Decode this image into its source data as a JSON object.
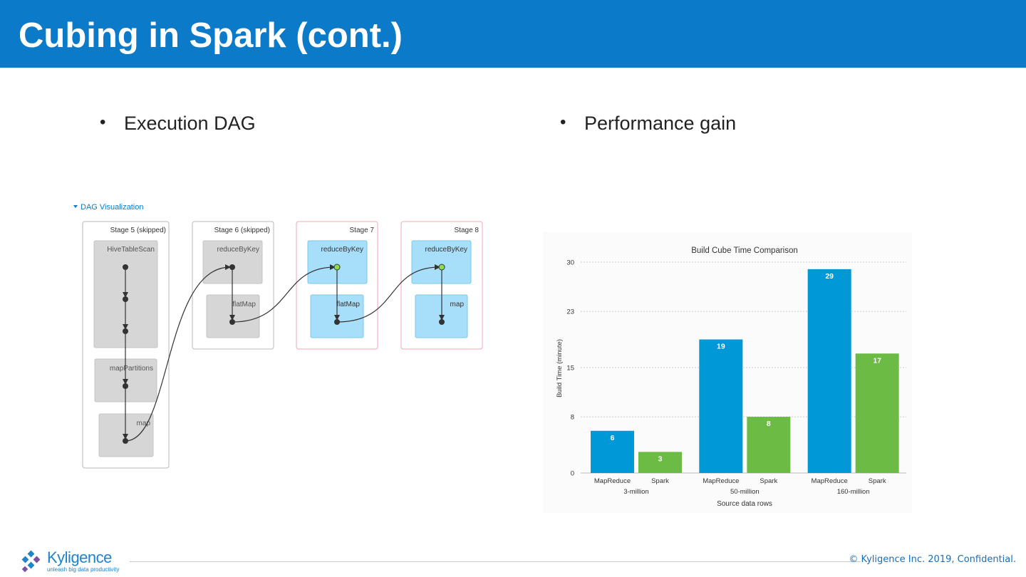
{
  "slide": {
    "title": "Cubing in Spark (cont.)",
    "bullet_left": "Execution DAG",
    "bullet_right": "Performance gain",
    "bullet_char": "•"
  },
  "dag": {
    "toggle_label": "DAG Visualization",
    "stages": [
      {
        "label": "Stage 5 (skipped)",
        "skipped": true,
        "ops": [
          "HiveTableScan",
          "mapPartitions",
          "map"
        ]
      },
      {
        "label": "Stage 6 (skipped)",
        "skipped": true,
        "ops": [
          "reduceByKey",
          "flatMap"
        ]
      },
      {
        "label": "Stage 7",
        "skipped": false,
        "ops": [
          "reduceByKey",
          "flatMap"
        ]
      },
      {
        "label": "Stage 8",
        "skipped": false,
        "ops": [
          "reduceByKey",
          "map"
        ]
      }
    ],
    "colors": {
      "skipped_fill": "#d6d6d6",
      "active_fill": "#a7dffa",
      "active_border": "#f3a5b6",
      "cached_node": "#8be04a"
    }
  },
  "chart_data": {
    "type": "bar",
    "title": "Build Cube Time Comparison",
    "xlabel": "Source data rows",
    "ylabel": "Build Time (minute)",
    "groups": [
      "3-million",
      "50-million",
      "160-million"
    ],
    "series": [
      {
        "name": "MapReduce",
        "color": "#0098d6",
        "values": [
          6,
          19,
          29
        ]
      },
      {
        "name": "Spark",
        "color": "#6cbb45",
        "values": [
          3,
          8,
          17
        ]
      }
    ],
    "ylim": [
      0,
      30
    ],
    "yticks": [
      0,
      8,
      15,
      23,
      30
    ],
    "grid": true
  },
  "footer": {
    "copyright": "© Kyligence Inc. 2019, Confidential.",
    "logo_name": "Kyligence",
    "logo_tagline": "unleash big data productivity"
  }
}
